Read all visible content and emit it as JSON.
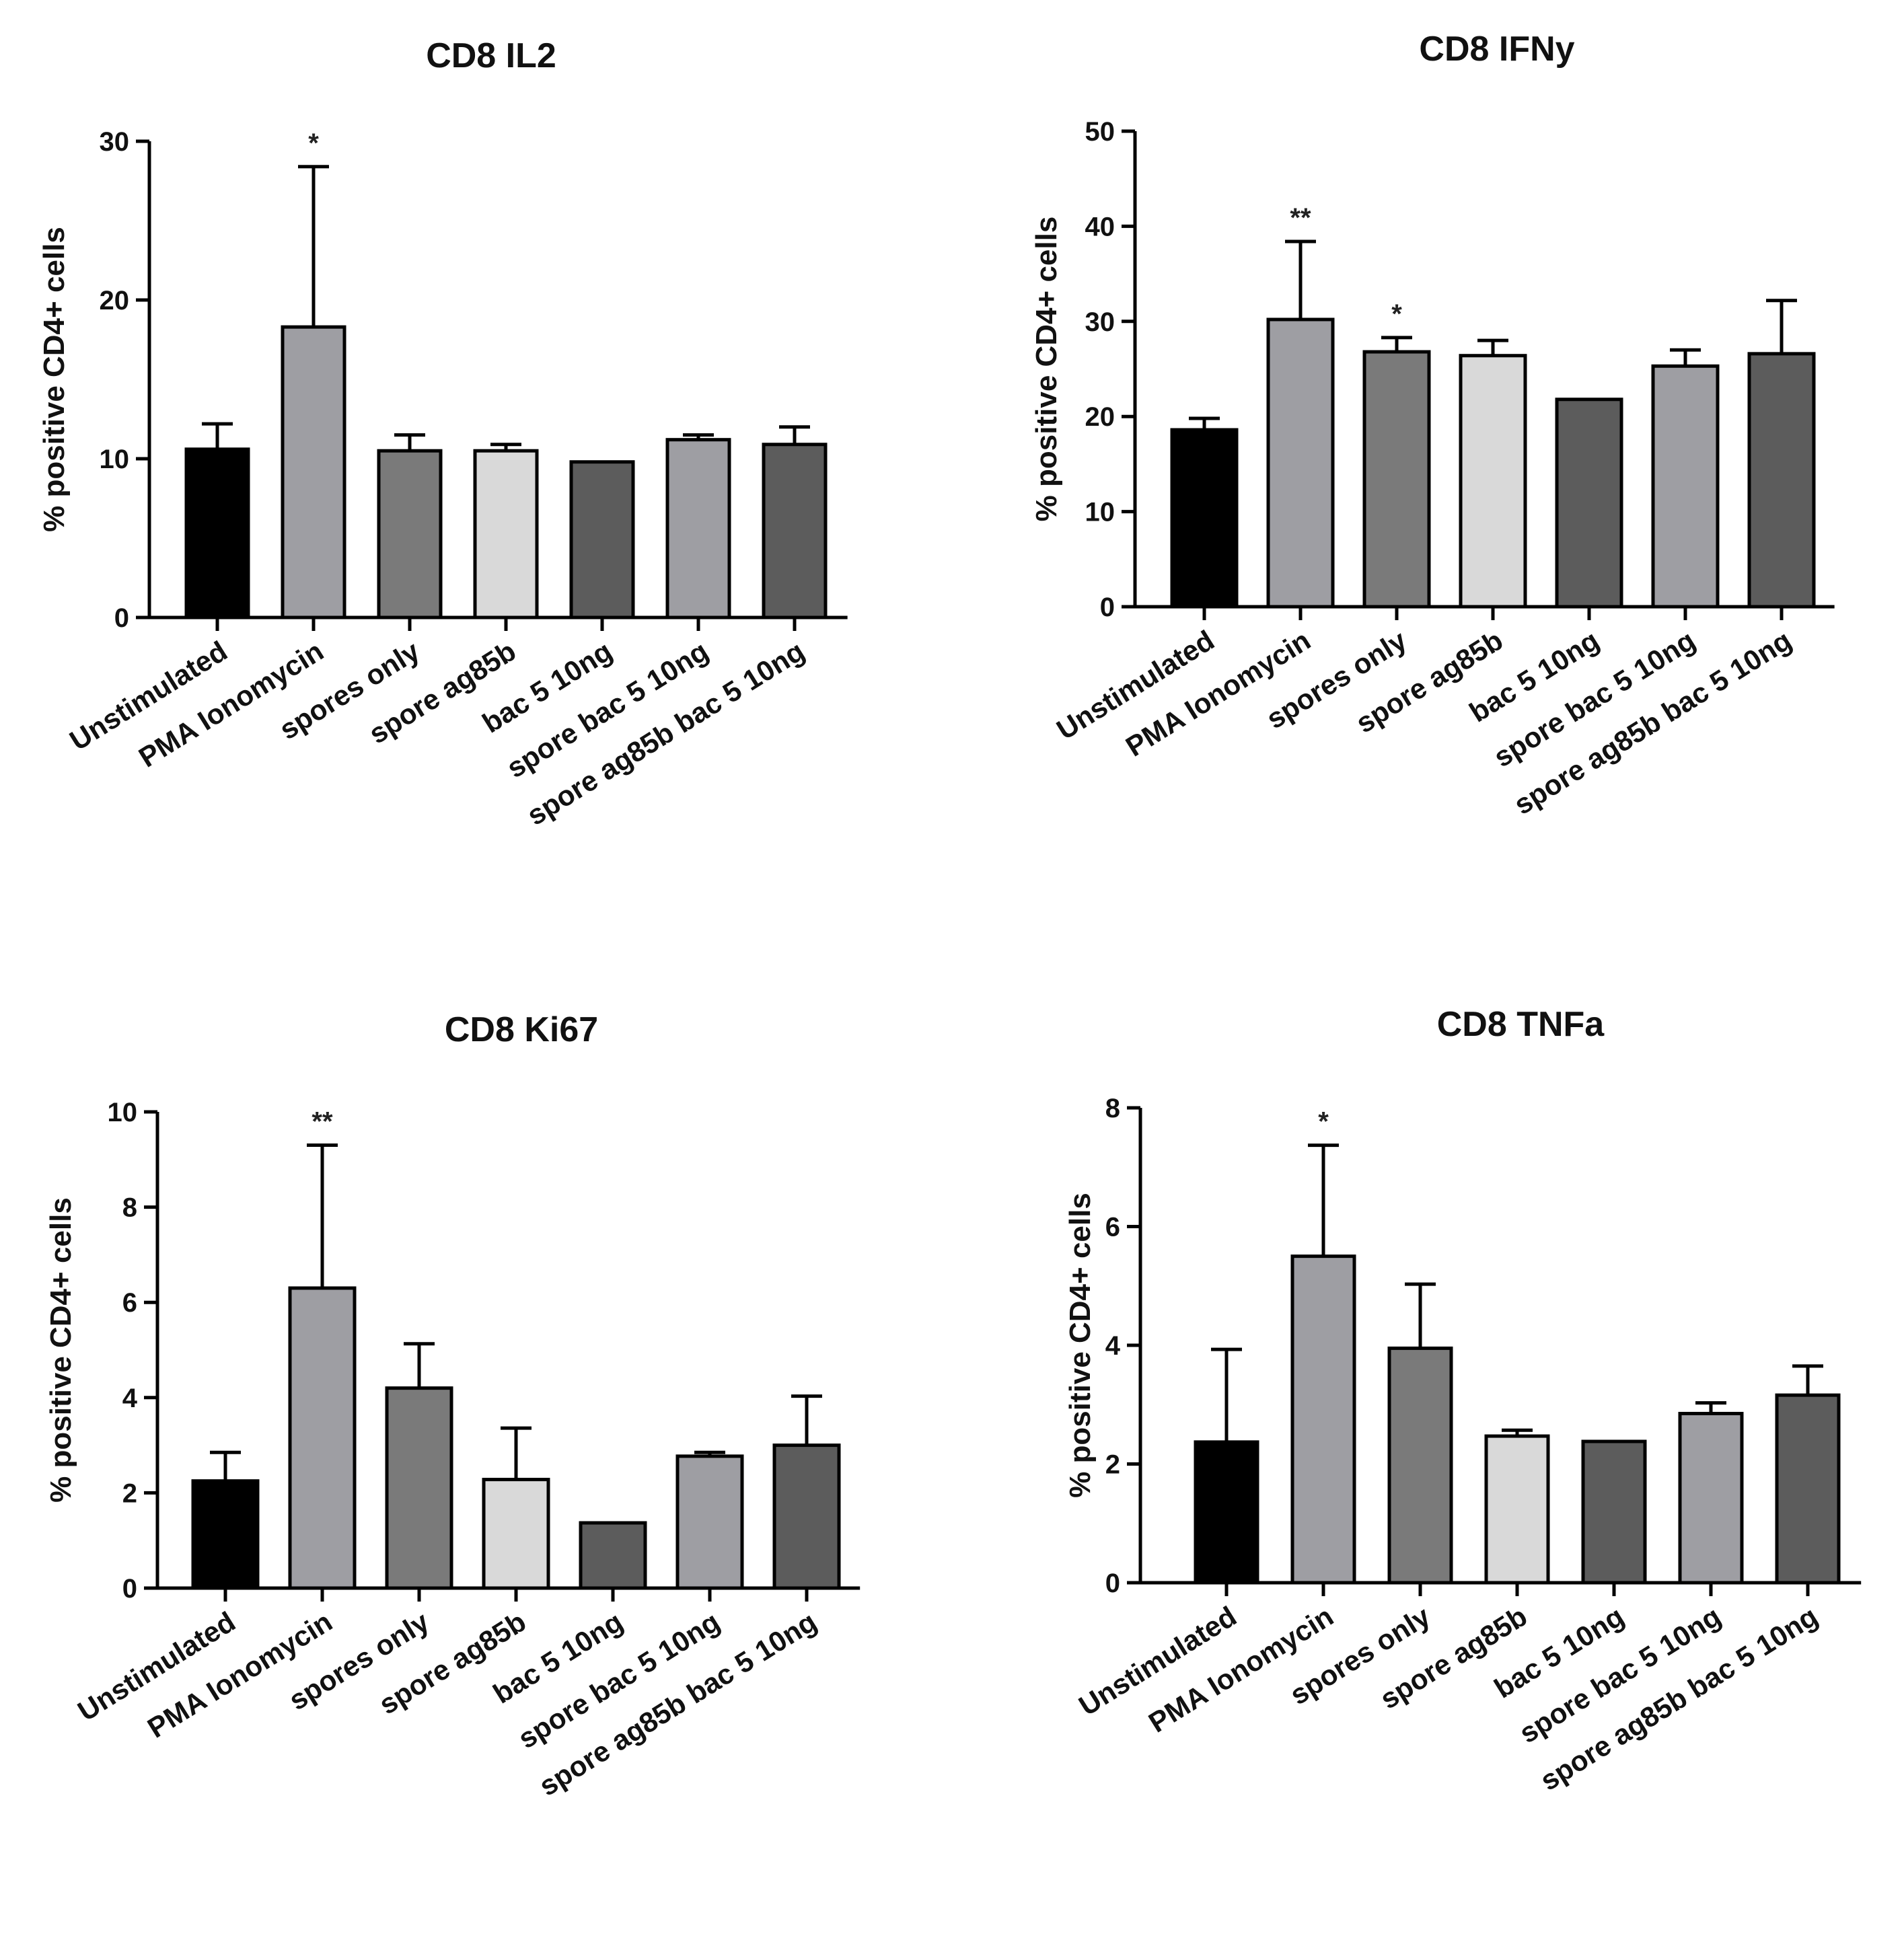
{
  "chart_data": [
    {
      "type": "bar",
      "title": "CD8 IL2",
      "ylabel": "% positive CD4+ cells",
      "xlabel": "",
      "ylim": [
        0,
        30
      ],
      "yticks": [
        0,
        10,
        20,
        30
      ],
      "categories": [
        "Unstimulated",
        "PMA Ionomycin",
        "spores only",
        "spore ag85b",
        "bac 5 10ng",
        "spore bac 5 10ng",
        "spore ag85b bac 5 10ng"
      ],
      "values": [
        10.6,
        18.3,
        10.5,
        10.5,
        9.8,
        11.2,
        10.9
      ],
      "errors": [
        1.6,
        10.1,
        1.0,
        0.4,
        0,
        0.3,
        1.1
      ],
      "significance": [
        "",
        "*",
        "",
        "",
        "",
        "",
        ""
      ],
      "colors": [
        "#000000",
        "#9e9ea3",
        "#7a7a7a",
        "#d9d9d9",
        "#5c5c5c",
        "#9e9ea3",
        "#5c5c5c"
      ]
    },
    {
      "type": "bar",
      "title": "CD8 IFNy",
      "ylabel": "% positive CD4+ cells",
      "xlabel": "",
      "ylim": [
        0,
        50
      ],
      "yticks": [
        0,
        10,
        20,
        30,
        40,
        50
      ],
      "categories": [
        "Unstimulated",
        "PMA Ionomycin",
        "spores only",
        "spore ag85b",
        "bac 5 10ng",
        "spore bac 5 10ng",
        "spore ag85b bac 5 10ng"
      ],
      "values": [
        18.6,
        30.2,
        26.8,
        26.4,
        21.8,
        25.3,
        26.6
      ],
      "errors": [
        1.2,
        8.2,
        1.5,
        1.6,
        0,
        1.7,
        5.6
      ],
      "significance": [
        "",
        "**",
        "*",
        "",
        "",
        "",
        ""
      ],
      "colors": [
        "#000000",
        "#9e9ea3",
        "#7a7a7a",
        "#d9d9d9",
        "#5c5c5c",
        "#9e9ea3",
        "#5c5c5c"
      ]
    },
    {
      "type": "bar",
      "title": "CD8 Ki67",
      "ylabel": "% positive CD4+ cells",
      "xlabel": "",
      "ylim": [
        0,
        10
      ],
      "yticks": [
        0,
        2,
        4,
        6,
        8,
        10
      ],
      "categories": [
        "Unstimulated",
        "PMA Ionomycin",
        "spores only",
        "spore ag85b",
        "bac 5 10ng",
        "spore bac 5 10ng",
        "spore ag85b bac 5 10ng"
      ],
      "values": [
        2.25,
        6.3,
        4.2,
        2.28,
        1.37,
        2.77,
        3.0
      ],
      "errors": [
        0.6,
        3.0,
        0.93,
        1.08,
        0,
        0.08,
        1.03
      ],
      "significance": [
        "",
        "**",
        "",
        "",
        "",
        "",
        ""
      ],
      "colors": [
        "#000000",
        "#9e9ea3",
        "#7a7a7a",
        "#d9d9d9",
        "#5c5c5c",
        "#9e9ea3",
        "#5c5c5c"
      ]
    },
    {
      "type": "bar",
      "title": "CD8 TNFa",
      "ylabel": "% positive CD4+ cells",
      "xlabel": "",
      "ylim": [
        0,
        8
      ],
      "yticks": [
        0,
        2,
        4,
        6,
        8
      ],
      "categories": [
        "Unstimulated",
        "PMA Ionomycin",
        "spores only",
        "spore ag85b",
        "bac 5 10ng",
        "spore bac 5 10ng",
        "spore ag85b bac 5 10ng"
      ],
      "values": [
        2.37,
        5.5,
        3.95,
        2.47,
        2.38,
        2.85,
        3.16
      ],
      "errors": [
        1.56,
        1.87,
        1.08,
        0.1,
        0,
        0.18,
        0.49
      ],
      "significance": [
        "",
        "*",
        "",
        "",
        "",
        "",
        ""
      ],
      "colors": [
        "#000000",
        "#9e9ea3",
        "#7a7a7a",
        "#d9d9d9",
        "#5c5c5c",
        "#9e9ea3",
        "#5c5c5c"
      ]
    }
  ]
}
